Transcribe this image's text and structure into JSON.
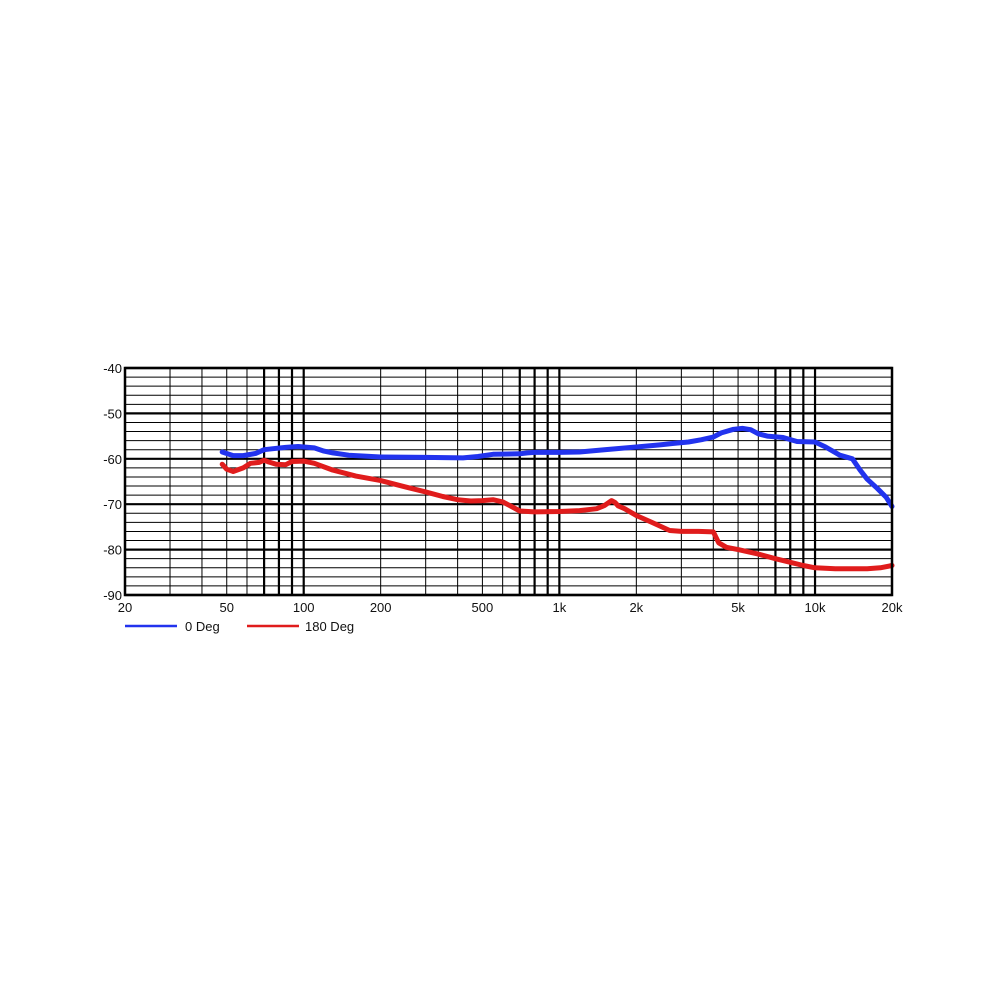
{
  "chart_data": {
    "type": "line",
    "title": "",
    "xlabel": "",
    "ylabel": "",
    "x_scale": "log",
    "xlim": [
      20,
      20000
    ],
    "ylim": [
      -90,
      -40
    ],
    "grid": true,
    "legend_placement": "bottom-left",
    "x_major_ticks": [
      20,
      30,
      40,
      50,
      60,
      70,
      80,
      90,
      100,
      200,
      300,
      400,
      500,
      600,
      700,
      800,
      900,
      1000,
      2000,
      3000,
      4000,
      5000,
      6000,
      7000,
      8000,
      9000,
      10000,
      20000
    ],
    "x_bold_ticks": [
      70,
      80,
      90,
      100,
      700,
      800,
      900,
      1000,
      7000,
      8000,
      9000,
      10000
    ],
    "x_tick_labels": [
      {
        "value": 20,
        "label": "20"
      },
      {
        "value": 50,
        "label": "50"
      },
      {
        "value": 100,
        "label": "100"
      },
      {
        "value": 200,
        "label": "200"
      },
      {
        "value": 500,
        "label": "500"
      },
      {
        "value": 1000,
        "label": "1k"
      },
      {
        "value": 2000,
        "label": "2k"
      },
      {
        "value": 5000,
        "label": "5k"
      },
      {
        "value": 10000,
        "label": "10k"
      },
      {
        "value": 20000,
        "label": "20k"
      }
    ],
    "y_tick_labels": [
      {
        "value": -40,
        "label": "-40"
      },
      {
        "value": -50,
        "label": "-50"
      },
      {
        "value": -60,
        "label": "-60"
      },
      {
        "value": -70,
        "label": "-70"
      },
      {
        "value": -80,
        "label": "-80"
      },
      {
        "value": -90,
        "label": "-90"
      }
    ],
    "series": [
      {
        "name": "0 Deg",
        "color": "#2233ee",
        "x": [
          48,
          53,
          58,
          65,
          70,
          75,
          85,
          95,
          110,
          120,
          130,
          150,
          200,
          300,
          420,
          480,
          550,
          700,
          750,
          800,
          900,
          1000,
          1200,
          1500,
          2000,
          2500,
          2800,
          3200,
          3600,
          4000,
          4300,
          4800,
          5200,
          5600,
          6000,
          6500,
          7500,
          8500,
          10000,
          11000,
          12500,
          14000,
          15000,
          16000,
          17500,
          19000,
          20000
        ],
        "y": [
          -58.5,
          -59.3,
          -59.3,
          -58.8,
          -58.0,
          -57.8,
          -57.5,
          -57.3,
          -57.6,
          -58.3,
          -58.7,
          -59.2,
          -59.6,
          -59.7,
          -59.8,
          -59.5,
          -59.0,
          -58.9,
          -58.7,
          -58.6,
          -58.6,
          -58.6,
          -58.5,
          -58.0,
          -57.4,
          -56.9,
          -56.6,
          -56.3,
          -55.8,
          -55.2,
          -54.3,
          -53.5,
          -53.3,
          -53.6,
          -54.5,
          -55.0,
          -55.3,
          -56.2,
          -56.3,
          -57.4,
          -59.2,
          -60.0,
          -62.5,
          -64.5,
          -66.5,
          -68.5,
          -70.5
        ]
      },
      {
        "name": "180 Deg",
        "color": "#e01c1c",
        "x": [
          48,
          50,
          53,
          58,
          62,
          67,
          70,
          73,
          78,
          85,
          90,
          100,
          110,
          130,
          160,
          200,
          250,
          300,
          350,
          400,
          450,
          500,
          550,
          600,
          650,
          700,
          800,
          1000,
          1200,
          1400,
          1500,
          1600,
          1650,
          1700,
          1800,
          2000,
          2300,
          2700,
          3000,
          3500,
          4000,
          4200,
          4500,
          5000,
          6000,
          7000,
          8000,
          9000,
          10000,
          12000,
          14000,
          16000,
          18000,
          20000
        ],
        "y": [
          -61.2,
          -62.3,
          -62.8,
          -62.0,
          -61.0,
          -60.8,
          -60.3,
          -60.7,
          -61.2,
          -61.3,
          -60.6,
          -60.5,
          -61.0,
          -62.5,
          -63.8,
          -64.8,
          -66.2,
          -67.3,
          -68.3,
          -69.0,
          -69.3,
          -69.2,
          -69.0,
          -69.5,
          -70.5,
          -71.5,
          -71.7,
          -71.6,
          -71.4,
          -71.0,
          -70.3,
          -69.2,
          -69.6,
          -70.4,
          -71.0,
          -72.5,
          -74.0,
          -75.8,
          -76.0,
          -76.0,
          -76.1,
          -78.5,
          -79.5,
          -80.0,
          -81.0,
          -82.0,
          -82.8,
          -83.5,
          -84.0,
          -84.2,
          -84.2,
          -84.2,
          -84.0,
          -83.5
        ]
      }
    ]
  }
}
